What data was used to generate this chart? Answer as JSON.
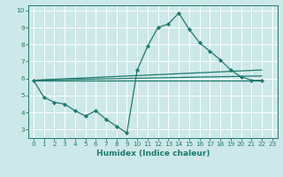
{
  "main_line": {
    "x": [
      0,
      1,
      2,
      3,
      4,
      5,
      6,
      7,
      8,
      9,
      10,
      11,
      12,
      13,
      14,
      15,
      16,
      17,
      18,
      19,
      20,
      21,
      22
    ],
    "y": [
      5.9,
      4.9,
      4.6,
      4.5,
      4.1,
      3.8,
      4.1,
      3.6,
      3.2,
      2.8,
      6.5,
      7.9,
      9.0,
      9.2,
      9.85,
      8.9,
      8.1,
      7.6,
      7.1,
      6.5,
      6.1,
      5.9,
      5.9
    ],
    "color": "#1e7a6e",
    "marker": "D",
    "markersize": 2.2,
    "linewidth": 0.9
  },
  "straight_lines": [
    {
      "x": [
        0,
        22
      ],
      "y": [
        5.9,
        5.9
      ]
    },
    {
      "x": [
        0,
        22
      ],
      "y": [
        5.9,
        6.15
      ]
    },
    {
      "x": [
        0,
        22
      ],
      "y": [
        5.9,
        6.5
      ]
    }
  ],
  "straight_color": "#1e7a6e",
  "straight_linewidth": 0.9,
  "xlabel": "Humidex (Indice chaleur)",
  "xlim": [
    -0.5,
    23.5
  ],
  "ylim": [
    2.5,
    10.3
  ],
  "yticks": [
    3,
    4,
    5,
    6,
    7,
    8,
    9,
    10
  ],
  "xticks": [
    0,
    1,
    2,
    3,
    4,
    5,
    6,
    7,
    8,
    9,
    10,
    11,
    12,
    13,
    14,
    15,
    16,
    17,
    18,
    19,
    20,
    21,
    22,
    23
  ],
  "bg_color": "#cde8e8",
  "grid_color": "#ffffff",
  "line_color": "#1e7a6e",
  "tick_color": "#1e7a6e",
  "label_color": "#1e7a6e",
  "xlabel_fontsize": 6.5,
  "tick_fontsize": 5.2
}
